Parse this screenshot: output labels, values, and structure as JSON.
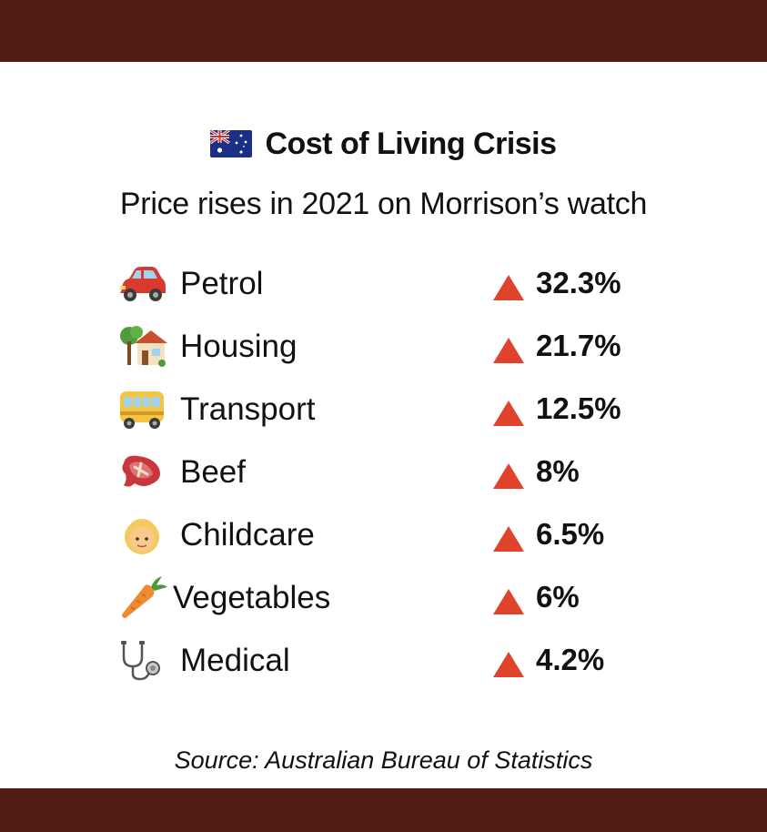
{
  "header": {
    "flag_icon": "australia-flag-icon",
    "title": "Cost of Living Crisis",
    "subtitle": "Price rises in 2021 on Morrison’s watch"
  },
  "items": [
    {
      "icon": "car-icon",
      "label": "Petrol",
      "value": "32.3%"
    },
    {
      "icon": "house-icon",
      "label": "Housing",
      "value": "21.7%"
    },
    {
      "icon": "bus-icon",
      "label": "Transport",
      "value": "12.5%"
    },
    {
      "icon": "meat-icon",
      "label": "Beef",
      "value": "8%"
    },
    {
      "icon": "child-icon",
      "label": "Childcare",
      "value": "6.5%"
    },
    {
      "icon": "carrot-icon",
      "label": "Vegetables",
      "value": "6%"
    },
    {
      "icon": "stethoscope-icon",
      "label": "Medical",
      "value": "4.2%"
    }
  ],
  "indicator_icon": "up-triangle-icon",
  "footer": {
    "source": "Source: Australian Bureau of Statistics"
  },
  "colors": {
    "band": "#521d14",
    "triangle": "#e0432b",
    "text": "#111111",
    "background": "#ffffff"
  }
}
